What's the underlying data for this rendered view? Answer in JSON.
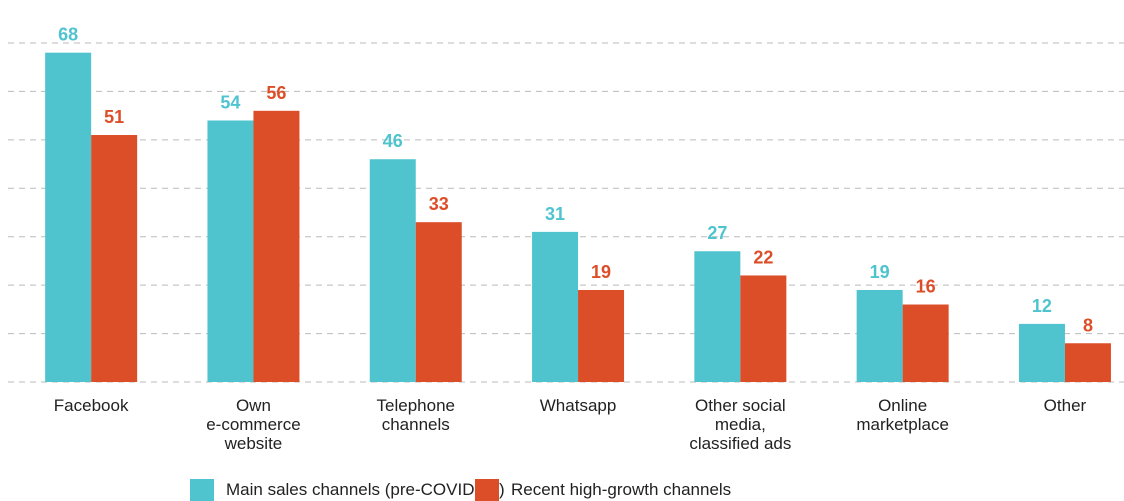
{
  "chart_data": {
    "type": "bar",
    "categories": [
      "Facebook",
      "Own\ne-commerce\nwebsite",
      "Telephone\nchannels",
      "Whatsapp",
      "Other social\nmedia,\nclassified ads",
      "Online\nmarketplace",
      "Other"
    ],
    "series": [
      {
        "name": "Main sales channels (pre-COVID-19)",
        "color": "#4fc4cf",
        "values": [
          68,
          54,
          46,
          31,
          27,
          19,
          12
        ]
      },
      {
        "name": "Recent high-growth channels",
        "color": "#dc4e28",
        "values": [
          51,
          56,
          33,
          19,
          22,
          16,
          8
        ]
      }
    ],
    "ylim": [
      0,
      70
    ],
    "yticks": [
      0,
      10,
      20,
      30,
      40,
      50,
      60,
      70
    ],
    "grid": true
  }
}
